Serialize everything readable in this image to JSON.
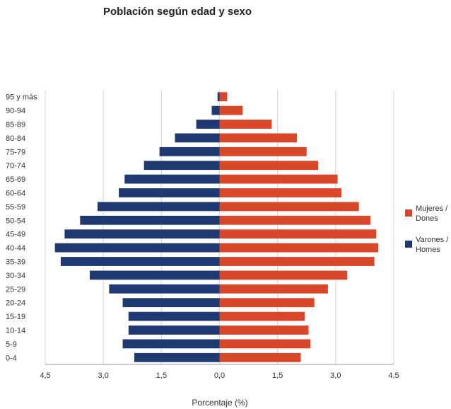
{
  "chart_data": {
    "type": "bar",
    "orientation": "horizontal",
    "subtype": "population-pyramid",
    "title": "Población según edad y sexo",
    "xlabel": "Porcentaje (%)",
    "ylabel": "",
    "xlim": [
      -4.5,
      4.5
    ],
    "x_ticks": [
      "4,5",
      "3,0",
      "1,5",
      "0,0",
      "1,5",
      "3,0",
      "4,5"
    ],
    "x_tick_values": [
      -4.5,
      -3.0,
      -1.5,
      0.0,
      1.5,
      3.0,
      4.5
    ],
    "grid": true,
    "legend_position": "right",
    "categories": [
      "95 y más",
      "90-94",
      "85-89",
      "80-84",
      "75-79",
      "70-74",
      "65-69",
      "60-64",
      "55-59",
      "50-54",
      "45-49",
      "40-44",
      "35-39",
      "30-34",
      "25-29",
      "20-24",
      "15-19",
      "10-14",
      "5-9",
      "0-4"
    ],
    "series": [
      {
        "name": "Mujeres / Dones",
        "color": "#d9472b",
        "values": [
          0.2,
          0.6,
          1.35,
          2.0,
          2.25,
          2.55,
          3.05,
          3.15,
          3.6,
          3.9,
          4.05,
          4.1,
          4.0,
          3.3,
          2.8,
          2.45,
          2.2,
          2.3,
          2.35,
          2.1
        ]
      },
      {
        "name": "Varones / Homes",
        "color": "#1f3a73",
        "values": [
          0.05,
          0.2,
          0.6,
          1.15,
          1.55,
          1.95,
          2.45,
          2.6,
          3.15,
          3.6,
          4.0,
          4.25,
          4.1,
          3.35,
          2.85,
          2.5,
          2.35,
          2.35,
          2.5,
          2.2
        ]
      }
    ]
  }
}
